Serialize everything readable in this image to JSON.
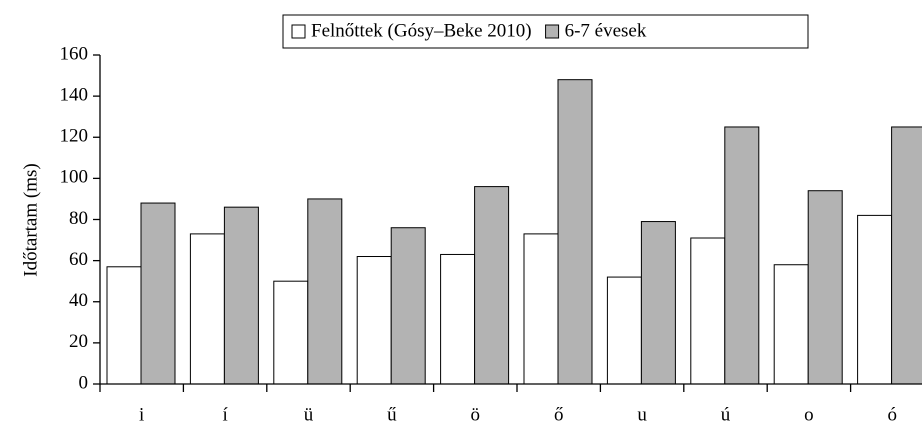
{
  "chart_data": {
    "type": "bar",
    "y_label": "Időtartam (ms)",
    "categories": [
      "i",
      "í",
      "ü",
      "ű",
      "ö",
      "ő",
      "u",
      "ú",
      "o",
      "ó"
    ],
    "series": [
      {
        "name": "Felnőttek (Gósy–Beke 2010)",
        "color": "#ffffff",
        "values": [
          57,
          73,
          50,
          62,
          63,
          73,
          52,
          71,
          58,
          82
        ]
      },
      {
        "name": "6-7 évesek",
        "color": "#b3b3b3",
        "values": [
          88,
          86,
          90,
          76,
          96,
          148,
          79,
          125,
          94,
          125
        ]
      }
    ],
    "ylim": [
      0,
      160
    ],
    "yticks": [
      0,
      20,
      40,
      60,
      80,
      100,
      120,
      140,
      160
    ],
    "legend": "top"
  }
}
